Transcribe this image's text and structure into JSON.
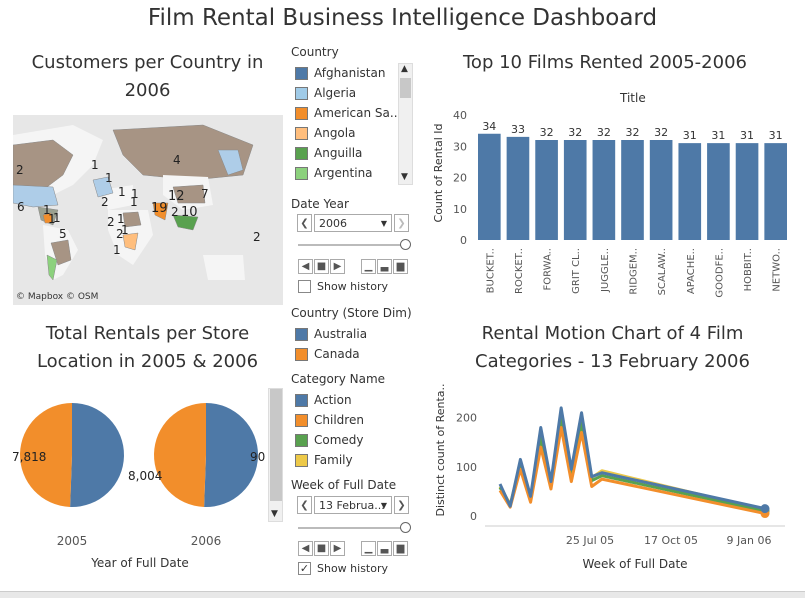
{
  "dashboard_title": "Film Rental Business Intelligence Dashboard",
  "map": {
    "title_line1": "Customers per Country in",
    "title_line2": "2006",
    "attribution": "© Mapbox © OSM",
    "labels": [
      "2",
      "4",
      "1",
      "1",
      "1",
      "1",
      "2",
      "1",
      "12",
      "7",
      "6",
      "1",
      "19",
      "2",
      "10",
      "1",
      "1",
      "5",
      "2",
      "2",
      "1",
      "1",
      "2",
      "1"
    ]
  },
  "country_filter": {
    "title": "Country",
    "items": [
      {
        "label": "Afghanistan",
        "color": "#4e79a7"
      },
      {
        "label": "Algeria",
        "color": "#a0cbe8"
      },
      {
        "label": "American Sa..",
        "color": "#f28e2b"
      },
      {
        "label": "Angola",
        "color": "#ffbe7d"
      },
      {
        "label": "Anguilla",
        "color": "#59a14f"
      },
      {
        "label": "Argentina",
        "color": "#8cd17d"
      }
    ]
  },
  "date_year": {
    "title": "Date Year",
    "value": "2006",
    "show_history": "Show history"
  },
  "store_legend": {
    "title": "Country (Store Dim)",
    "items": [
      {
        "label": "Australia",
        "color": "#4e79a7"
      },
      {
        "label": "Canada",
        "color": "#f28e2b"
      }
    ]
  },
  "category_legend": {
    "title": "Category Name",
    "items": [
      {
        "label": "Action",
        "color": "#4e79a7"
      },
      {
        "label": "Children",
        "color": "#f28e2b"
      },
      {
        "label": "Comedy",
        "color": "#59a14f"
      },
      {
        "label": "Family",
        "color": "#edc948"
      }
    ]
  },
  "week_filter": {
    "title": "Week of Full Date",
    "value": "13 Februa...",
    "show_history": "Show history"
  },
  "top_films": {
    "title": "Top 10 Films Rented 2005-2006",
    "header": "Title",
    "ylabel": "Count of Rental Id"
  },
  "pies": {
    "title_line1": "Total Rentals per Store",
    "title_line2": "Location in 2005 & 2006",
    "xlabel": "Year of Full Date",
    "labels": [
      "7,818",
      "8,004",
      "90"
    ]
  },
  "motion": {
    "title_line1": "Rental Motion Chart of 4 Film",
    "title_line2": "Categories - 13 February 2006",
    "ylabel": "Distinct count of Renta..",
    "xlabel": "Week of Full Date"
  },
  "chart_data": [
    {
      "type": "bar",
      "title": "Top 10 Films Rented 2005-2006",
      "ylabel": "Count of Rental Id",
      "categories": [
        "BUCKET..",
        "ROCKET..",
        "FORWA..",
        "GRIT CL..",
        "JUGGLE..",
        "RIDGEM..",
        "SCALAW..",
        "APACHE..",
        "GOODFE..",
        "HOBBIT..",
        "NETWO.."
      ],
      "values": [
        34,
        33,
        32,
        32,
        32,
        32,
        32,
        31,
        31,
        31,
        31
      ],
      "ylim": [
        0,
        40
      ],
      "yticks": [
        0,
        10,
        20,
        30,
        40
      ],
      "color": "#4e79a7"
    },
    {
      "type": "pie",
      "title": "Total Rentals per Store Location in 2005 & 2006",
      "xlabel": "Year of Full Date",
      "categories": [
        "2005",
        "2006"
      ],
      "series": [
        {
          "name": "Australia",
          "values": [
            8004,
            null
          ]
        },
        {
          "name": "Canada",
          "values": [
            7818,
            null
          ]
        }
      ]
    },
    {
      "type": "line",
      "title": "Rental Motion Chart of 4 Film Categories - 13 February 2006",
      "xlabel": "Week of Full Date",
      "ylabel": "Distinct count of Renta..",
      "x_ticks": [
        "25 Jul 05",
        "17 Oct 05",
        "9 Jan 06"
      ],
      "yticks": [
        0,
        100,
        200
      ],
      "ylim": [
        0,
        240
      ],
      "x": [
        0,
        1,
        2,
        3,
        4,
        5,
        6,
        7,
        8,
        9,
        10,
        26
      ],
      "series": [
        {
          "name": "Action",
          "color": "#4e79a7",
          "values": [
            65,
            20,
            115,
            40,
            180,
            70,
            220,
            95,
            210,
            80,
            88,
            15
          ]
        },
        {
          "name": "Children",
          "color": "#f28e2b",
          "values": [
            52,
            18,
            95,
            28,
            140,
            55,
            180,
            70,
            170,
            60,
            75,
            5
          ]
        },
        {
          "name": "Comedy",
          "color": "#59a14f",
          "values": [
            58,
            22,
            100,
            35,
            160,
            62,
            200,
            80,
            190,
            72,
            82,
            10
          ]
        },
        {
          "name": "Family",
          "color": "#edc948",
          "values": [
            60,
            24,
            105,
            38,
            165,
            65,
            205,
            85,
            195,
            78,
            92,
            12
          ]
        }
      ]
    }
  ]
}
